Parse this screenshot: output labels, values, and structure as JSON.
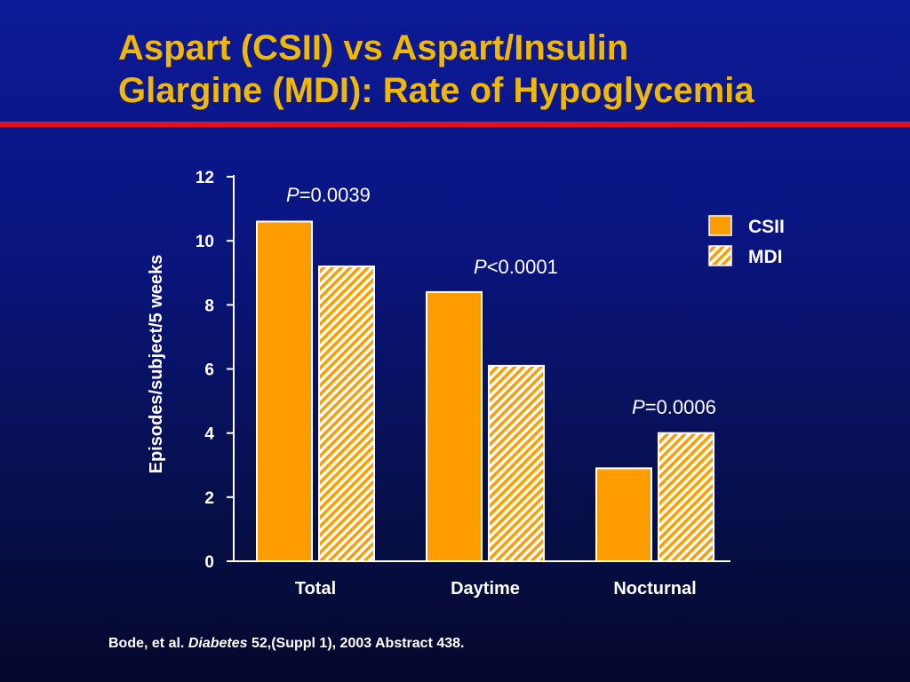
{
  "slide": {
    "title_line1": "Aspart (CSII) vs Aspart/Insulin",
    "title_line2": "Glargine (MDI): Rate of Hypoglycemia",
    "citation": {
      "authors": "Bode, et al.",
      "journal": "Diabetes",
      "rest": "52,(Suppl 1), 2003 Abstract 438."
    },
    "colors": {
      "background": "#0a1580",
      "title": "#f0b800",
      "rule": "#e8101e",
      "csii": "#ff9c00",
      "mdi_hatch": "#ff9c00",
      "mdi_base": "#ffffff"
    }
  },
  "chart_data": {
    "type": "bar",
    "categories": [
      "Total",
      "Daytime",
      "Nocturnal"
    ],
    "series": [
      {
        "name": "CSII",
        "values": [
          10.6,
          8.4,
          2.9
        ],
        "pattern": "solid"
      },
      {
        "name": "MDI",
        "values": [
          9.2,
          6.1,
          4.0
        ],
        "pattern": "hatched"
      }
    ],
    "annotations": [
      {
        "category": "Total",
        "prefix": "P",
        "text": "=0.0039"
      },
      {
        "category": "Daytime",
        "prefix": "P",
        "text": "<0.0001"
      },
      {
        "category": "Nocturnal",
        "prefix": "P",
        "text": "=0.0006"
      }
    ],
    "ylabel": "Episodes/subject/5 weeks",
    "yticks": [
      0,
      2,
      4,
      6,
      8,
      10,
      12
    ],
    "ylim": [
      0,
      12
    ],
    "legend_position": "top-right",
    "grid": false
  }
}
